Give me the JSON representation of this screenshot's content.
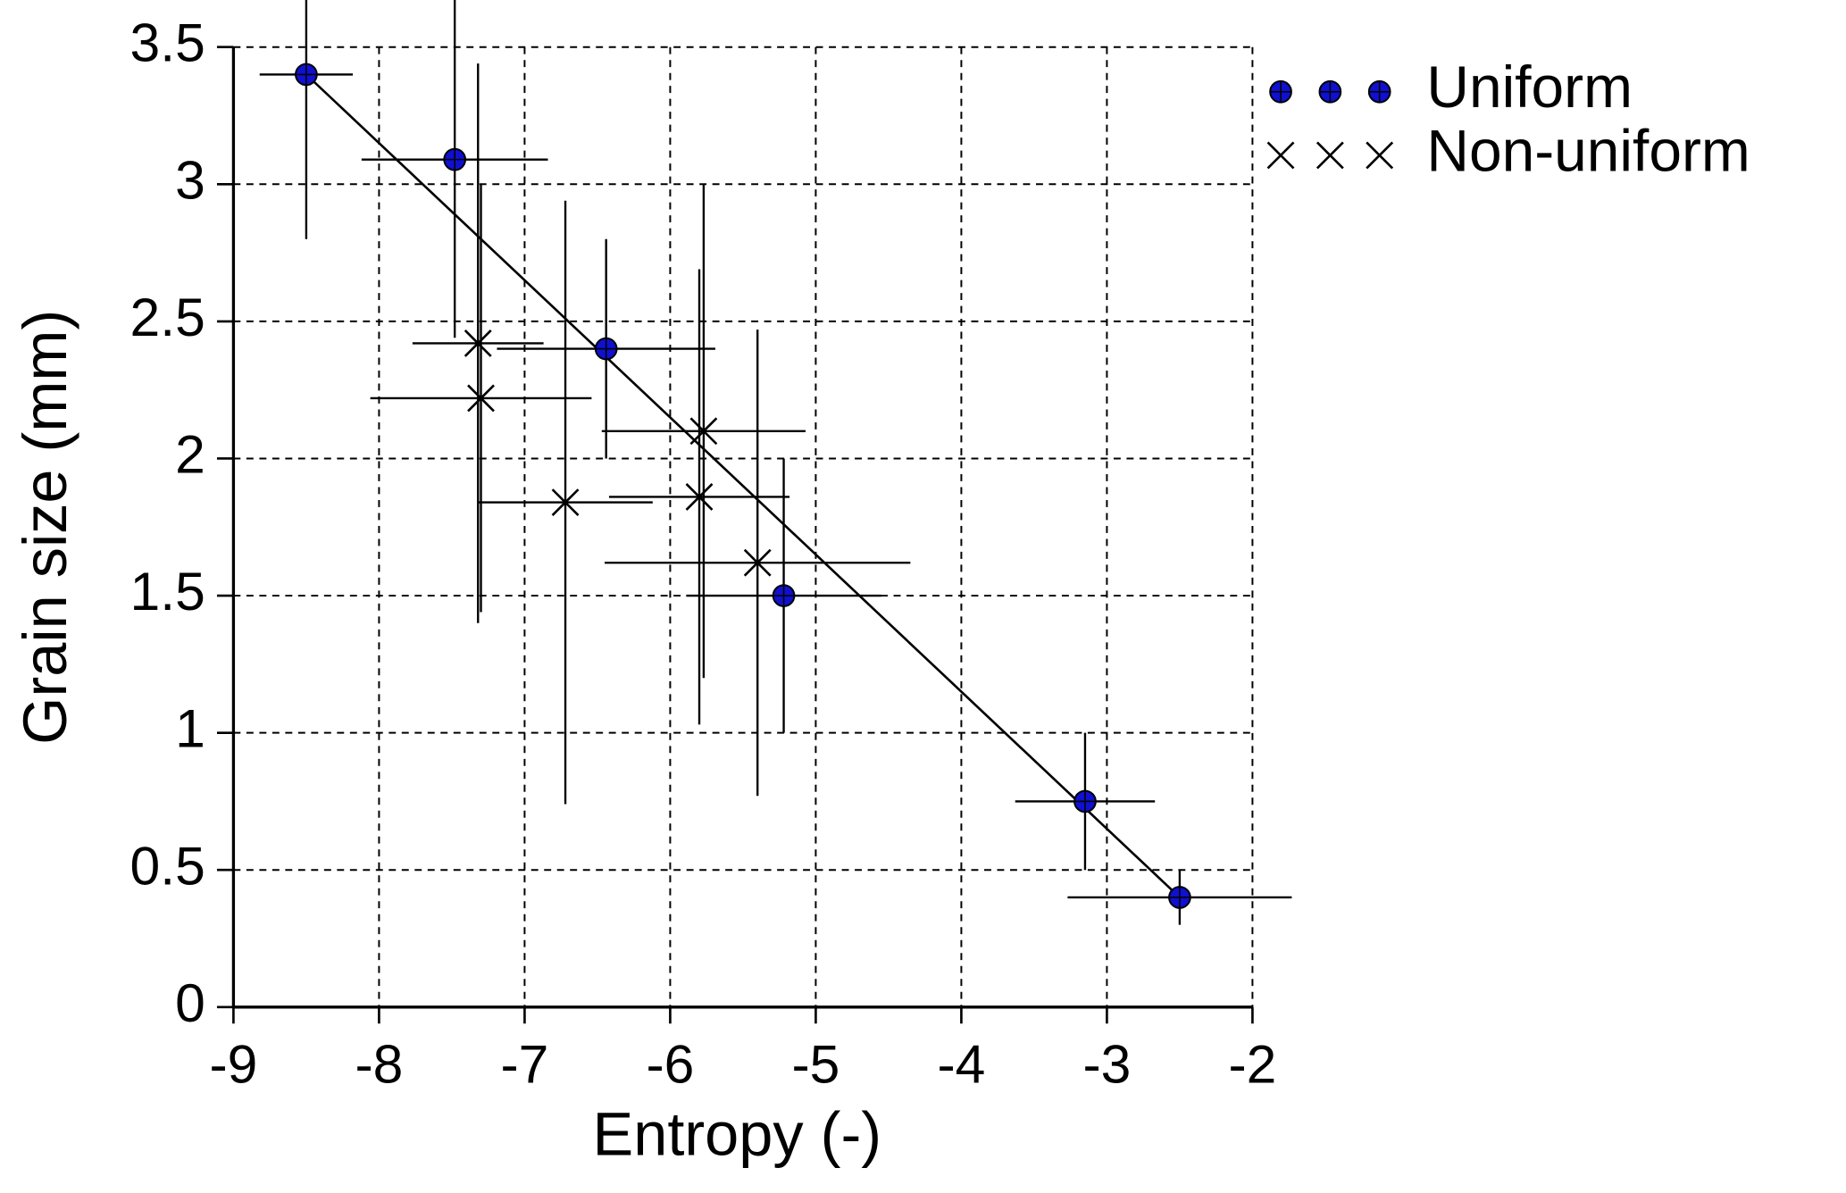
{
  "chart_data": {
    "type": "scatter",
    "xlabel": "Entropy (-)",
    "ylabel": "Grain size (mm)",
    "xlim": [
      -9,
      -2
    ],
    "xticks": [
      -9,
      -8,
      -7,
      -6,
      -5,
      -4,
      -3,
      -2
    ],
    "ylim": [
      0,
      3.5
    ],
    "yticks": [
      0,
      0.5,
      1,
      1.5,
      2,
      2.5,
      3,
      3.5
    ],
    "grid": true,
    "legend": "outside-top-right",
    "series": [
      {
        "name": "Uniform",
        "marker": "circle",
        "color": "#1010d0",
        "x": [
          -8.5,
          -7.48,
          -6.44,
          -5.22,
          -3.15,
          -2.5
        ],
        "y": [
          3.4,
          3.09,
          2.4,
          1.5,
          0.75,
          0.4
        ],
        "xerr": [
          0.32,
          0.64,
          0.75,
          0.67,
          0.48,
          0.77
        ],
        "yerr": [
          0.6,
          0.65,
          0.4,
          0.5,
          0.25,
          0.1
        ]
      },
      {
        "name": "Non-uniform",
        "marker": "x",
        "color": "#000000",
        "x": [
          -7.32,
          -7.3,
          -6.72,
          -5.77,
          -5.8,
          -5.4
        ],
        "y": [
          2.42,
          2.22,
          1.84,
          2.1,
          1.86,
          1.62
        ],
        "xerr": [
          0.45,
          0.76,
          0.6,
          0.7,
          0.62,
          1.05
        ],
        "yerr": [
          1.02,
          0.78,
          1.1,
          0.9,
          0.83,
          0.85
        ]
      }
    ],
    "fit_line": {
      "x": [
        -8.5,
        -2.5
      ],
      "y": [
        3.4,
        0.4
      ]
    }
  }
}
